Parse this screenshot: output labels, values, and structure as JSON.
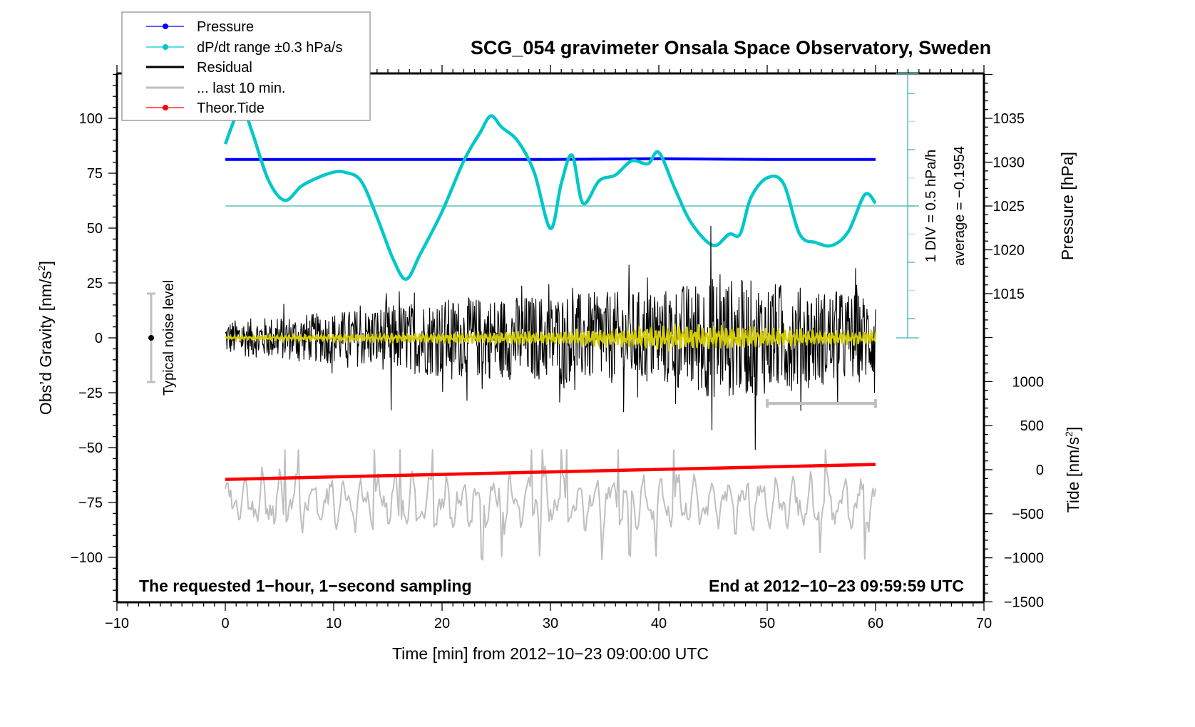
{
  "chart_data": {
    "type": "line",
    "title": "SCG_054 gravimeter Onsala Space Observatory, Sweden",
    "xlabel": "Time [min] from 2012−10−23 09:00:00 UTC",
    "xlim": [
      -10,
      70
    ],
    "x_ticks": [
      "−10",
      "0",
      "10",
      "20",
      "30",
      "40",
      "50",
      "60",
      "70"
    ],
    "x_tick_values": [
      -10,
      0,
      10,
      20,
      30,
      40,
      50,
      60,
      70
    ],
    "left_axis": {
      "label": "Obs’d Gravity [nm/s",
      "label_sup": "2",
      "label_end": "]",
      "ylim": [
        -120,
        120
      ],
      "ticks": [
        "100",
        "75",
        "50",
        "25",
        "0",
        "−25",
        "−50",
        "−75",
        "−100"
      ],
      "tick_values": [
        100,
        75,
        50,
        25,
        0,
        -25,
        -50,
        -75,
        -100
      ]
    },
    "pressure_axis": {
      "label": "Pressure [hPa]",
      "ticks": [
        "1035",
        "1030",
        "1025",
        "1020",
        "1015"
      ],
      "tick_values": [
        1035,
        1030,
        1025,
        1020,
        1015
      ]
    },
    "tide_axis": {
      "label": "Tide [nm/s",
      "label_sup": "2",
      "label_end": "]",
      "ticks": [
        "1000",
        "500",
        "0",
        "−500",
        "−1000",
        "−1500"
      ],
      "tick_values": [
        1000,
        500,
        0,
        -500,
        -1000,
        -1500
      ]
    },
    "dpdt_scale": {
      "div_label": "1 DIV = 0.5 hPa/h",
      "average_label": "average = −0.1954",
      "divisions": 9
    },
    "legend": {
      "placement": "top-left",
      "entries": [
        {
          "label": "Pressure",
          "color": "#0000ff",
          "marker": true
        },
        {
          "label": "dP/dt range ±0.3 hPa/s",
          "color": "#00c8c8",
          "marker": true
        },
        {
          "label": "Residual",
          "color": "#000000",
          "marker": false
        },
        {
          "label": "... last 10 min.",
          "color": "#bfbfbf",
          "marker": false
        },
        {
          "label": "Theor.Tide",
          "color": "#ff0000",
          "marker": true
        }
      ]
    },
    "series": [
      {
        "name": "Pressure",
        "axis": "pressure",
        "color": "#0000ff",
        "x": [
          0,
          10,
          20,
          30,
          40,
          50,
          60
        ],
        "values": [
          1030.3,
          1030.3,
          1030.3,
          1030.3,
          1030.4,
          1030.3,
          1030.3
        ]
      },
      {
        "name": "dP/dt",
        "axis": "dpdt_div",
        "color": "#00c8c8",
        "x": [
          0,
          1,
          1.7,
          2.5,
          4,
          5.5,
          7,
          8.5,
          10,
          11,
          12.5,
          14,
          15.5,
          16.7,
          18,
          20,
          22,
          23.5,
          24.5,
          25.5,
          27,
          28.5,
          30,
          31,
          32,
          33,
          34.5,
          36,
          37.5,
          39,
          40,
          41.5,
          43,
          45,
          46.5,
          47.5,
          48.5,
          50,
          51.5,
          53,
          54.5,
          56,
          57.5,
          59,
          60
        ],
        "values": [
          2.2,
          3.2,
          3.4,
          2.6,
          0.9,
          0.2,
          0.7,
          1.0,
          1.2,
          1.2,
          0.9,
          -0.4,
          -1.9,
          -2.6,
          -1.7,
          -0.2,
          1.6,
          2.6,
          3.2,
          2.8,
          2.3,
          1.2,
          -0.8,
          0.8,
          1.8,
          0.1,
          0.9,
          1.1,
          1.6,
          1.5,
          1.9,
          0.6,
          -0.6,
          -1.4,
          -1.0,
          -1.0,
          0.3,
          1.0,
          0.8,
          -1.0,
          -1.3,
          -1.4,
          -0.9,
          0.4,
          0.1
        ]
      },
      {
        "name": "Residual",
        "axis": "left",
        "color": "#000000",
        "x_range": [
          0,
          60
        ],
        "amplitude_envelope": {
          "x": [
            0,
            10,
            15,
            20,
            30,
            40,
            45,
            50,
            55,
            60
          ],
          "values": [
            8,
            12,
            15,
            18,
            20,
            22,
            28,
            26,
            22,
            20
          ]
        },
        "peaks": [
          {
            "x": 44.8,
            "y": 51
          },
          {
            "x": 44.9,
            "y": -42
          },
          {
            "x": 48.9,
            "y": -51
          },
          {
            "x": 15.3,
            "y": -33
          },
          {
            "x": 59.9,
            "y": -25
          }
        ]
      },
      {
        "name": "Residual (filtered)",
        "axis": "left",
        "color": "#d4cc00",
        "x_range": [
          0,
          60
        ],
        "amplitude_envelope": {
          "x": [
            0,
            10,
            20,
            30,
            38,
            40,
            45,
            50,
            55,
            60
          ],
          "values": [
            1,
            2,
            3,
            4,
            6,
            7,
            8,
            6,
            4,
            4
          ]
        }
      },
      {
        "name": "... last 10 min.",
        "axis": "left",
        "color": "#bfbfbf",
        "x_range": [
          0,
          60
        ],
        "baseline": -75,
        "min": -102,
        "max": -51
      },
      {
        "name": "Theor.Tide",
        "axis": "tide",
        "color": "#ff0000",
        "x": [
          0,
          60
        ],
        "values": [
          -110,
          60
        ]
      }
    ],
    "annotations": {
      "noise_label": "Typical noise level",
      "noise_range": [
        -20,
        20
      ],
      "bottom_left": "The requested 1−hour, 1−second sampling",
      "bottom_right": "End at 2012−10−23 09:59:59 UTC",
      "last10_bracket": [
        50,
        60
      ]
    }
  }
}
